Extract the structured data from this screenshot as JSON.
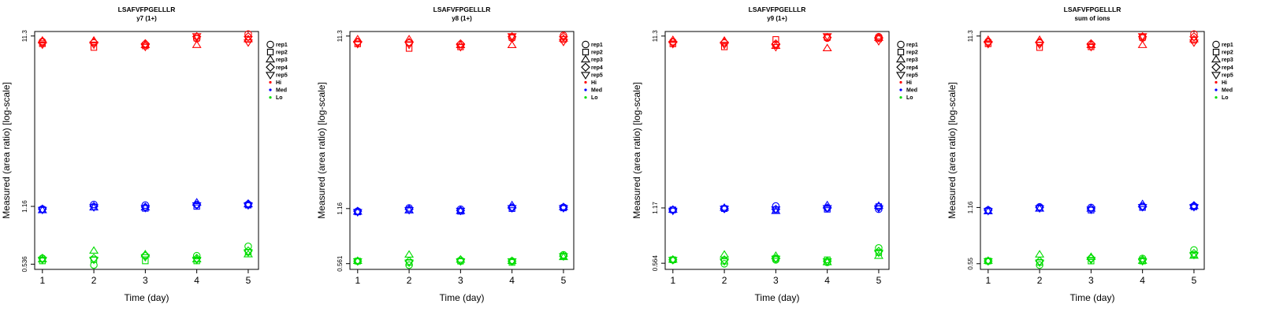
{
  "colors": {
    "Hi": "#ff0000",
    "Med": "#0000ff",
    "Lo": "#00dd00",
    "axis": "#000000"
  },
  "legend_entries": [
    {
      "label": "rep1",
      "symbol": "circle"
    },
    {
      "label": "rep2",
      "symbol": "square"
    },
    {
      "label": "rep3",
      "symbol": "triangle-up"
    },
    {
      "label": "rep4",
      "symbol": "diamond"
    },
    {
      "label": "rep5",
      "symbol": "triangle-down"
    },
    {
      "label": "Hi",
      "symbol": "dot",
      "color": "#ff0000"
    },
    {
      "label": "Med",
      "symbol": "dot",
      "color": "#0000ff"
    },
    {
      "label": "Lo",
      "symbol": "dot",
      "color": "#00dd00"
    }
  ],
  "chart_data": [
    {
      "type": "scatter",
      "title": "LSAFVFPGELLLR",
      "subtitle": "y7 (1+)",
      "xlabel": "Time (day)",
      "ylabel": "Measured (area ratio) [log-scale]",
      "x_ticks": [
        "1",
        "2",
        "3",
        "4",
        "5"
      ],
      "y_scale": "log",
      "y_ticks": [
        "0.536",
        "1.16",
        "11.3"
      ],
      "y_tick_values": [
        0.536,
        1.16,
        11.3
      ],
      "ylim": [
        0.5,
        12.0
      ],
      "xlim": [
        0.85,
        5.2
      ],
      "legend_position": "right",
      "groups": {
        "Hi": {
          "rep1": [
            10.5,
            10.3,
            10.1,
            10.9,
            11.6
          ],
          "rep2": [
            10.2,
            9.7,
            9.9,
            11.0,
            10.8
          ],
          "rep3": [
            10.6,
            10.6,
            10.0,
            10.0,
            10.8
          ],
          "rep4": [
            10.4,
            10.4,
            10.2,
            11.2,
            11.2
          ],
          "rep5": [
            10.1,
            10.1,
            9.8,
            11.3,
            10.4
          ]
        },
        "Med": {
          "rep1": [
            1.12,
            1.19,
            1.18,
            1.19,
            1.19
          ],
          "rep2": [
            1.11,
            1.15,
            1.13,
            1.16,
            1.18
          ],
          "rep3": [
            1.1,
            1.14,
            1.14,
            1.22,
            1.19
          ],
          "rep4": [
            1.12,
            1.16,
            1.15,
            1.18,
            1.2
          ],
          "rep5": [
            1.11,
            1.15,
            1.14,
            1.18,
            1.18
          ]
        },
        "Lo": {
          "rep1": [
            0.58,
            0.53,
            0.6,
            0.6,
            0.68
          ],
          "rep2": [
            0.56,
            0.57,
            0.56,
            0.56,
            0.63
          ],
          "rep3": [
            0.57,
            0.64,
            0.61,
            0.57,
            0.61
          ],
          "rep4": [
            0.58,
            0.58,
            0.6,
            0.58,
            0.64
          ],
          "rep5": [
            0.57,
            0.57,
            0.59,
            0.57,
            0.63
          ]
        }
      }
    },
    {
      "type": "scatter",
      "title": "LSAFVFPGELLLR",
      "subtitle": "y8 (1+)",
      "xlabel": "Time (day)",
      "ylabel": "Measured (area ratio) [log-scale]",
      "x_ticks": [
        "1",
        "2",
        "3",
        "4",
        "5"
      ],
      "y_scale": "log",
      "y_ticks": [
        "0.561",
        "1.16",
        "11.3"
      ],
      "y_tick_values": [
        0.561,
        1.16,
        11.3
      ],
      "ylim": [
        0.52,
        12.0
      ],
      "xlim": [
        0.85,
        5.2
      ],
      "legend_position": "right",
      "groups": {
        "Hi": {
          "rep1": [
            10.5,
            10.3,
            10.1,
            11.0,
            11.4
          ],
          "rep2": [
            10.2,
            9.6,
            9.8,
            11.1,
            10.8
          ],
          "rep3": [
            10.8,
            10.8,
            10.0,
            10.0,
            10.9
          ],
          "rep4": [
            10.4,
            10.4,
            10.2,
            11.2,
            11.2
          ],
          "rep5": [
            10.2,
            10.1,
            9.8,
            11.3,
            10.5
          ]
        },
        "Med": {
          "rep1": [
            1.12,
            1.17,
            1.15,
            1.18,
            1.18
          ],
          "rep2": [
            1.11,
            1.14,
            1.12,
            1.16,
            1.17
          ],
          "rep3": [
            1.11,
            1.13,
            1.12,
            1.21,
            1.18
          ],
          "rep4": [
            1.12,
            1.15,
            1.13,
            1.17,
            1.18
          ],
          "rep5": [
            1.11,
            1.14,
            1.13,
            1.17,
            1.17
          ]
        },
        "Lo": {
          "rep1": [
            0.58,
            0.55,
            0.58,
            0.58,
            0.63
          ],
          "rep2": [
            0.58,
            0.57,
            0.58,
            0.57,
            0.62
          ],
          "rep3": [
            0.58,
            0.63,
            0.59,
            0.58,
            0.61
          ],
          "rep4": [
            0.58,
            0.58,
            0.59,
            0.58,
            0.62
          ],
          "rep5": [
            0.58,
            0.57,
            0.58,
            0.58,
            0.62
          ]
        }
      }
    },
    {
      "type": "scatter",
      "title": "LSAFVFPGELLLR",
      "subtitle": "y9 (1+)",
      "xlabel": "Time (day)",
      "ylabel": "Measured (area ratio) [log-scale]",
      "x_ticks": [
        "1",
        "2",
        "3",
        "4",
        "5"
      ],
      "y_scale": "log",
      "y_ticks": [
        "0.564",
        "1.17",
        "11.3"
      ],
      "y_tick_values": [
        0.564,
        1.17,
        11.3
      ],
      "ylim": [
        0.52,
        12.0
      ],
      "xlim": [
        0.85,
        5.2
      ],
      "legend_position": "right",
      "groups": {
        "Hi": {
          "rep1": [
            10.5,
            10.3,
            10.1,
            11.0,
            11.2
          ],
          "rep2": [
            10.2,
            9.8,
            10.8,
            11.1,
            10.9
          ],
          "rep3": [
            10.7,
            10.6,
            9.9,
            9.6,
            11.0
          ],
          "rep4": [
            10.4,
            10.4,
            10.2,
            11.1,
            11.1
          ],
          "rep5": [
            10.2,
            10.1,
            9.8,
            11.3,
            10.6
          ]
        },
        "Med": {
          "rep1": [
            1.14,
            1.16,
            1.2,
            1.17,
            1.15
          ],
          "rep2": [
            1.14,
            1.16,
            1.14,
            1.15,
            1.19
          ],
          "rep3": [
            1.14,
            1.17,
            1.12,
            1.21,
            1.2
          ],
          "rep4": [
            1.14,
            1.16,
            1.15,
            1.17,
            1.19
          ],
          "rep5": [
            1.13,
            1.16,
            1.15,
            1.17,
            1.17
          ]
        },
        "Lo": {
          "rep1": [
            0.59,
            0.56,
            0.59,
            0.57,
            0.69
          ],
          "rep2": [
            0.59,
            0.58,
            0.6,
            0.59,
            0.65
          ],
          "rep3": [
            0.59,
            0.63,
            0.62,
            0.57,
            0.62
          ],
          "rep4": [
            0.59,
            0.59,
            0.6,
            0.58,
            0.66
          ],
          "rep5": [
            0.59,
            0.58,
            0.6,
            0.58,
            0.65
          ]
        }
      }
    },
    {
      "type": "scatter",
      "title": "LSAFVFPGELLLR",
      "subtitle": "sum of ions",
      "xlabel": "Time (day)",
      "ylabel": "Measured (area ratio) [log-scale]",
      "x_ticks": [
        "1",
        "2",
        "3",
        "4",
        "5"
      ],
      "y_scale": "log",
      "y_ticks": [
        "0.55",
        "1.16",
        "11.3"
      ],
      "y_tick_values": [
        0.55,
        1.16,
        11.3
      ],
      "ylim": [
        0.51,
        12.0
      ],
      "xlim": [
        0.85,
        5.2
      ],
      "legend_position": "right",
      "groups": {
        "Hi": {
          "rep1": [
            10.5,
            10.3,
            10.1,
            11.0,
            11.6
          ],
          "rep2": [
            10.2,
            9.7,
            9.8,
            11.1,
            10.7
          ],
          "rep3": [
            10.7,
            10.7,
            10.0,
            10.0,
            10.8
          ],
          "rep4": [
            10.4,
            10.4,
            10.2,
            11.2,
            11.2
          ],
          "rep5": [
            10.2,
            10.1,
            9.8,
            11.3,
            10.4
          ]
        },
        "Med": {
          "rep1": [
            1.12,
            1.17,
            1.16,
            1.18,
            1.18
          ],
          "rep2": [
            1.11,
            1.15,
            1.12,
            1.16,
            1.17
          ],
          "rep3": [
            1.1,
            1.14,
            1.14,
            1.21,
            1.18
          ],
          "rep4": [
            1.12,
            1.16,
            1.14,
            1.17,
            1.19
          ],
          "rep5": [
            1.11,
            1.15,
            1.13,
            1.17,
            1.17
          ]
        },
        "Lo": {
          "rep1": [
            0.57,
            0.54,
            0.59,
            0.59,
            0.66
          ],
          "rep2": [
            0.57,
            0.56,
            0.57,
            0.57,
            0.62
          ],
          "rep3": [
            0.57,
            0.62,
            0.6,
            0.57,
            0.61
          ],
          "rep4": [
            0.57,
            0.57,
            0.59,
            0.58,
            0.63
          ],
          "rep5": [
            0.57,
            0.56,
            0.58,
            0.57,
            0.62
          ]
        }
      }
    }
  ]
}
